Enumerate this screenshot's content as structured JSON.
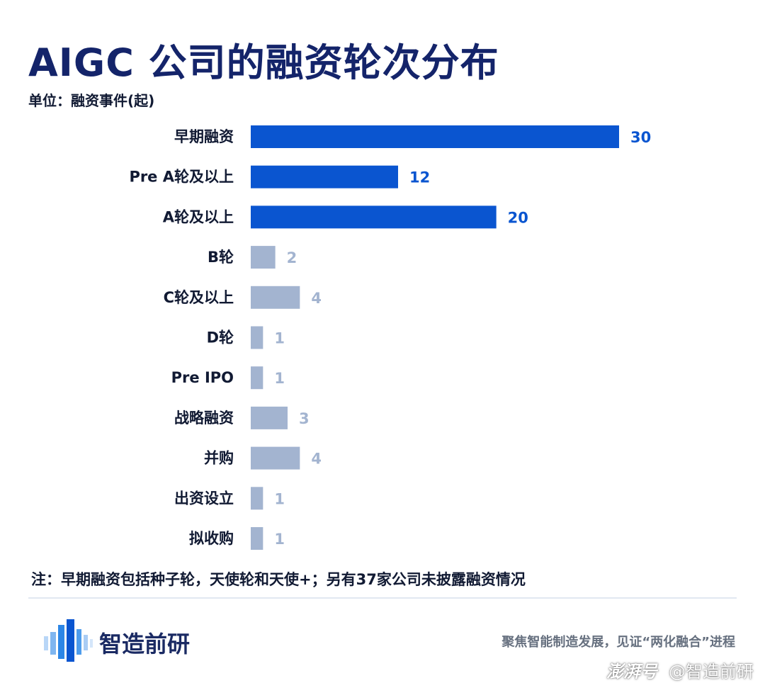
{
  "title": "AIGC 公司的融资轮次分布",
  "unit": "单位：融资事件(起)",
  "note": "注：早期融资包括种子轮，天使轮和天使+；另有37家公司未披露融资情况",
  "footer": {
    "brand": "智造前研",
    "slogan": "聚焦智能制造发展，见证“两化融合”进程"
  },
  "watermark": {
    "platform": "澎湃号",
    "handle": "@智造前研"
  },
  "colors": {
    "highlight": "#0a55d0",
    "muted": "#a3b4d0",
    "highlight_label": "#0a55d0",
    "muted_label": "#a3b4d0",
    "title": "#14246a"
  },
  "chart_data": {
    "type": "bar",
    "orientation": "horizontal",
    "categories": [
      "早期融资",
      "Pre A轮及以上",
      "A轮及以上",
      "B轮",
      "C轮及以上",
      "D轮",
      "Pre IPO",
      "战略融资",
      "并购",
      "出资设立",
      "拟收购"
    ],
    "values": [
      30,
      12,
      20,
      2,
      4,
      1,
      1,
      3,
      4,
      1,
      1
    ],
    "highlighted": [
      true,
      true,
      true,
      false,
      false,
      false,
      false,
      false,
      false,
      false,
      false
    ],
    "title": "AIGC 公司的融资轮次分布",
    "xlabel": "",
    "ylabel": "",
    "unit": "融资事件(起)",
    "xlim": [
      0,
      30
    ],
    "grid": false,
    "legend": "none"
  }
}
